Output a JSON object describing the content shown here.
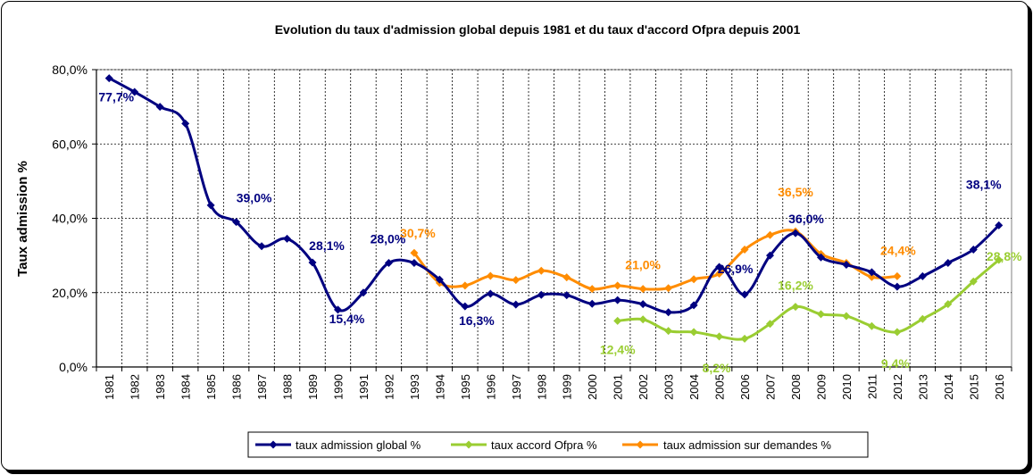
{
  "chart_data": {
    "type": "line",
    "title": "Evolution  du taux d'admission  global  depuis  1981  et du taux d'accord  Ofpra depuis  2001",
    "xlabel": "",
    "ylabel": "Taux admission %",
    "ylim": [
      0,
      80
    ],
    "yticks": [
      "0,0%",
      "20,0%",
      "40,0%",
      "60,0%",
      "80,0%"
    ],
    "grid": true,
    "legend_position": "bottom",
    "categories": [
      "1981",
      "1982",
      "1983",
      "1984",
      "1985",
      "1986",
      "1987",
      "1988",
      "1989",
      "1990",
      "1991",
      "1992",
      "1993",
      "1994",
      "1995",
      "1996",
      "1997",
      "1998",
      "1999",
      "2000",
      "2001",
      "2002",
      "2003",
      "2004",
      "2005",
      "2006",
      "2007",
      "2008",
      "2009",
      "2010",
      "2011",
      "2012",
      "2013",
      "2014",
      "2015",
      "2016"
    ],
    "series": [
      {
        "name": "taux admission global %",
        "color": "#000080",
        "values": [
          77.7,
          74.0,
          70.0,
          65.5,
          43.5,
          39.0,
          32.5,
          34.5,
          28.1,
          15.4,
          20.0,
          28.0,
          28.0,
          23.5,
          16.3,
          19.7,
          16.8,
          19.4,
          19.3,
          17.0,
          18.0,
          16.9,
          14.7,
          16.6,
          26.9,
          19.5,
          30.0,
          36.0,
          29.5,
          27.5,
          25.5,
          21.6,
          24.4,
          28.0,
          31.6,
          38.1
        ]
      },
      {
        "name": "taux accord Ofpra %",
        "color": "#9ACD32",
        "values": [
          null,
          null,
          null,
          null,
          null,
          null,
          null,
          null,
          null,
          null,
          null,
          null,
          null,
          null,
          null,
          null,
          null,
          null,
          null,
          null,
          12.4,
          12.8,
          9.7,
          9.4,
          8.2,
          7.6,
          11.6,
          16.2,
          14.2,
          13.7,
          11.0,
          9.4,
          12.9,
          16.9,
          23.0,
          28.8
        ]
      },
      {
        "name": "taux admission sur demandes %",
        "color": "#FF8C00",
        "values": [
          null,
          null,
          null,
          null,
          null,
          null,
          null,
          null,
          null,
          null,
          null,
          null,
          30.7,
          22.6,
          21.9,
          24.5,
          23.4,
          25.9,
          24.1,
          21.0,
          21.9,
          21.0,
          21.2,
          23.6,
          25.1,
          31.6,
          35.5,
          36.5,
          30.4,
          28.0,
          24.2,
          24.4,
          null,
          null,
          null,
          null
        ]
      }
    ],
    "data_labels": [
      {
        "series": 0,
        "index": 0,
        "text": "77,7%",
        "color": "#000080"
      },
      {
        "series": 0,
        "index": 5,
        "text": "39,0%",
        "color": "#000080"
      },
      {
        "series": 0,
        "index": 8,
        "text": "28,1%",
        "color": "#000080"
      },
      {
        "series": 0,
        "index": 9,
        "text": "15,4%",
        "color": "#000080"
      },
      {
        "series": 0,
        "index": 11,
        "text": "28,0%",
        "color": "#000080"
      },
      {
        "series": 0,
        "index": 14,
        "text": "16,3%",
        "color": "#000080"
      },
      {
        "series": 0,
        "index": 24,
        "text": "26,9%",
        "color": "#000080"
      },
      {
        "series": 0,
        "index": 27,
        "text": "36,0%",
        "color": "#000080"
      },
      {
        "series": 0,
        "index": 35,
        "text": "38,1%",
        "color": "#000080"
      },
      {
        "series": 1,
        "index": 20,
        "text": "12,4%",
        "color": "#9ACD32"
      },
      {
        "series": 1,
        "index": 24,
        "text": "8,2%",
        "color": "#9ACD32"
      },
      {
        "series": 1,
        "index": 27,
        "text": "16,2%",
        "color": "#9ACD32"
      },
      {
        "series": 1,
        "index": 31,
        "text": "9,4%",
        "color": "#9ACD32"
      },
      {
        "series": 1,
        "index": 35,
        "text": "28,8%",
        "color": "#9ACD32"
      },
      {
        "series": 2,
        "index": 12,
        "text": "30,7%",
        "color": "#FF8C00"
      },
      {
        "series": 2,
        "index": 21,
        "text": "21,0%",
        "color": "#FF8C00"
      },
      {
        "series": 2,
        "index": 27,
        "text": "36,5%",
        "color": "#FF8C00"
      },
      {
        "series": 2,
        "index": 31,
        "text": "24,4%",
        "color": "#FF8C00"
      }
    ]
  }
}
